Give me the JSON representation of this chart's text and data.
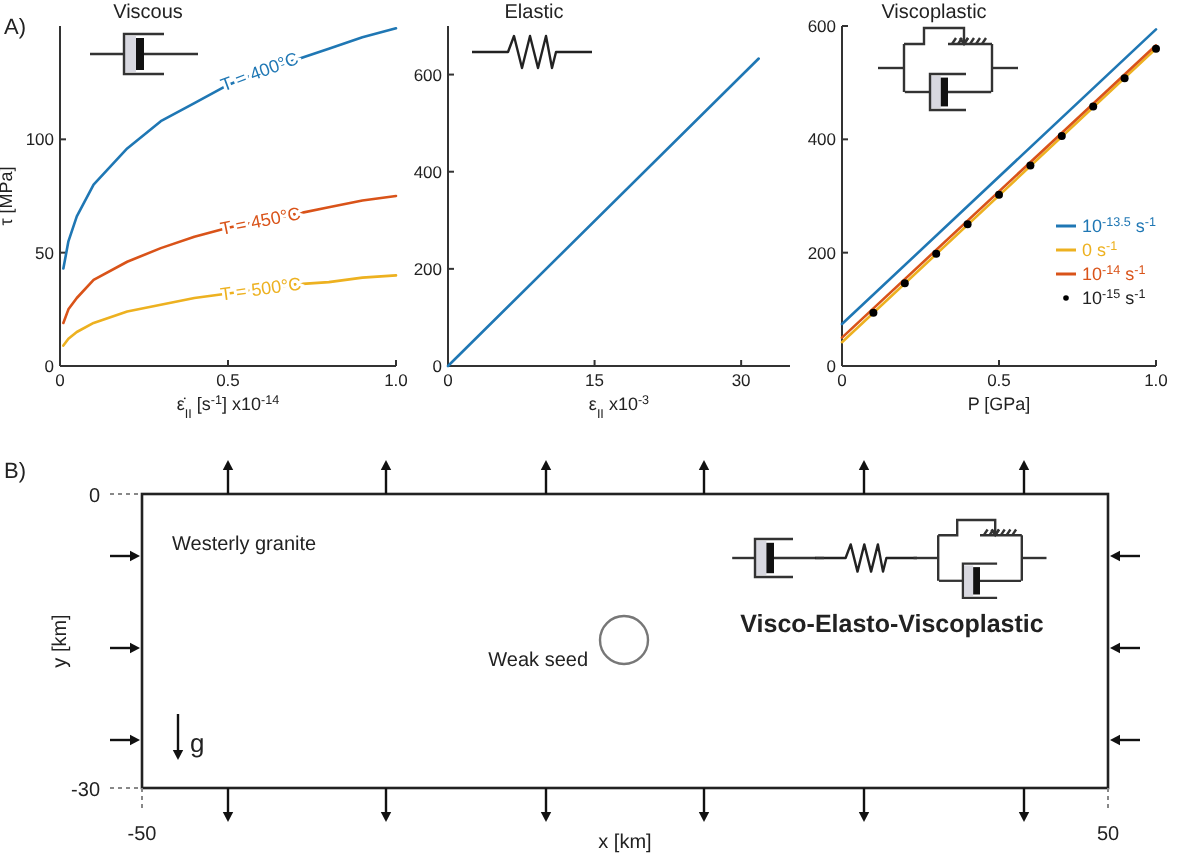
{
  "chart_data": [
    {
      "type": "line",
      "title": "Viscous",
      "xlabel": "ε̇$_{II}$ [s$^{-1}$]  x10$^{-14}$",
      "ylabel": "τ [MPa]",
      "annotations": [
        "A)"
      ],
      "x": [
        0.01,
        0.025,
        0.05,
        0.1,
        0.2,
        0.3,
        0.4,
        0.5,
        0.6,
        0.7,
        0.8,
        0.9,
        1.0
      ],
      "xlim": [
        0,
        1
      ],
      "xticks": [
        0,
        0.5,
        {
          "value": 1,
          "label": "1.0"
        }
      ],
      "ylim": [
        0,
        150
      ],
      "yticks": [
        0,
        50,
        100
      ],
      "series": [
        {
          "name": "T = 400°C",
          "color": "#1f77b4",
          "values": [
            43,
            55,
            66,
            80,
            96,
            108,
            116,
            124,
            130,
            135,
            140,
            145,
            149
          ]
        },
        {
          "name": "T = 450°C",
          "color": "#d95319",
          "values": [
            19,
            25,
            30,
            38,
            46,
            52,
            57,
            61,
            64,
            67,
            70,
            73,
            75
          ]
        },
        {
          "name": "T = 500°C",
          "color": "#edb120",
          "values": [
            9,
            12,
            15,
            19,
            24,
            27,
            30,
            32,
            34,
            36,
            37,
            39,
            40
          ]
        }
      ]
    },
    {
      "type": "line",
      "title": "Elastic",
      "xlabel": "ε$_{II}$ x10$^{-3}$",
      "xlim": [
        0,
        35
      ],
      "xticks": [
        0,
        15,
        30
      ],
      "ylim": [
        0,
        700
      ],
      "yticks": [
        0,
        200,
        400,
        600
      ],
      "series": [
        {
          "color": "#1f77b4",
          "x": [
            0,
            31.8
          ],
          "values": [
            0,
            633
          ]
        }
      ]
    },
    {
      "type": "line",
      "title": "Viscoplastic",
      "xlabel": "P [GPa]",
      "xlim": [
        0,
        1
      ],
      "xticks": [
        0,
        0.5,
        {
          "value": 1,
          "label": "1.0"
        }
      ],
      "ylim": [
        0,
        600
      ],
      "yticks": [
        0,
        200,
        400,
        600
      ],
      "legend": "right",
      "series": [
        {
          "name": "10$^{-13.5}$ s$^{-1}$",
          "color": "#1f77b4",
          "x": [
            0,
            1
          ],
          "values": [
            74,
            594
          ]
        },
        {
          "name": "0 s$^{-1}$",
          "color": "#edb120",
          "x": [
            0,
            1
          ],
          "values": [
            42,
            560
          ]
        },
        {
          "name": "10$^{-14}$ s$^{-1}$",
          "color": "#d95319",
          "x": [
            0,
            1
          ],
          "values": [
            50,
            566
          ]
        },
        {
          "name": "10$^{-15}$ s$^{-1}$",
          "type": "scatter",
          "marker": "circle",
          "color": "#000000",
          "x": [
            0.1,
            0.2,
            0.3,
            0.4,
            0.5,
            0.6,
            0.7,
            0.8,
            0.9,
            1.0
          ],
          "values": [
            94,
            146,
            198,
            250,
            302,
            354,
            406,
            458,
            508,
            560
          ]
        }
      ]
    },
    {
      "type": "other",
      "xlabel": "x [km]",
      "ylabel": "y [km]",
      "annotations": [
        "B)",
        "Westerly granite",
        "Weak seed",
        "Visco-Elasto-Viscoplastic",
        "g",
        "0",
        "-30",
        "-50",
        "50"
      ]
    }
  ]
}
